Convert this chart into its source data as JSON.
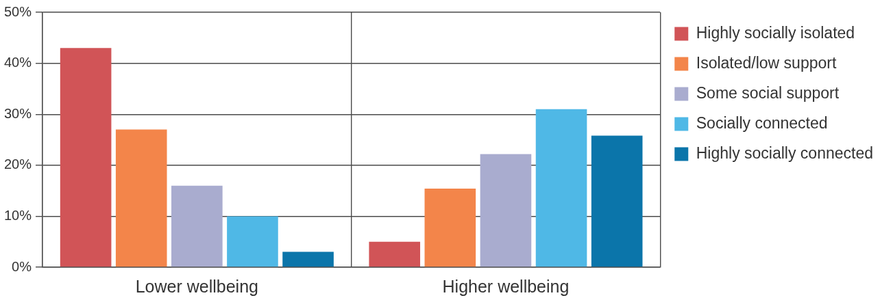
{
  "chart_data": {
    "type": "bar",
    "categories": [
      "Lower wellbeing",
      "Higher wellbeing"
    ],
    "series": [
      {
        "name": "Highly socially isolated",
        "color": "#d15457",
        "values": [
          43,
          5
        ]
      },
      {
        "name": "Isolated/low support",
        "color": "#f3854a",
        "values": [
          27,
          15.4
        ]
      },
      {
        "name": "Some social support",
        "color": "#a9accf",
        "values": [
          16,
          22.2
        ]
      },
      {
        "name": "Socially connected",
        "color": "#4fb8e6",
        "values": [
          10,
          31
        ]
      },
      {
        "name": "Highly socially connected",
        "color": "#0b75aa",
        "values": [
          3,
          25.8
        ]
      }
    ],
    "ylim": [
      0,
      50
    ],
    "yticks": [
      {
        "value": 0,
        "label": "0%"
      },
      {
        "value": 10,
        "label": "10%"
      },
      {
        "value": 20,
        "label": "20%"
      },
      {
        "value": 30,
        "label": "30%"
      },
      {
        "value": 40,
        "label": "40%"
      },
      {
        "value": 50,
        "label": "50%"
      }
    ],
    "grid": true,
    "legend": "top right"
  }
}
